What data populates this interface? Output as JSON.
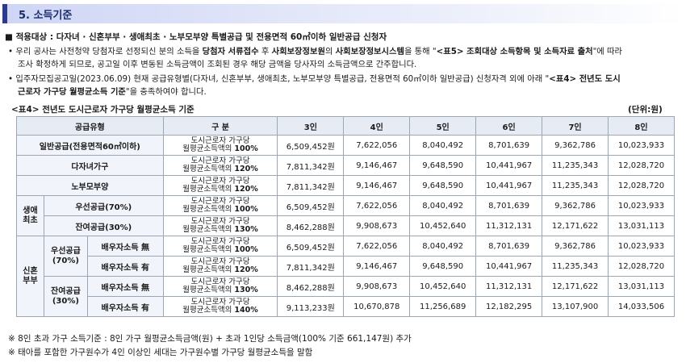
{
  "section_title": "5. 소득기준",
  "apply_line": {
    "prefix": "■ 적용대상 : ",
    "text": "다자녀 · 신혼부부 · 생애최초 · 노부모부양 특별공급 및 전용면적 60㎡이하 일반공급 신청자"
  },
  "para1": {
    "line1a": "• 우리 공사는 사전청약 당첨자로 선정되신 분의 소득을 ",
    "line1b": "당첨자 서류접수",
    "line1c": " 후 ",
    "line1d": "사회보장정보원",
    "line1e": "의 ",
    "line1f": "사회보장정보시스템",
    "line1g": "을 통해 \"",
    "line1h": "<표5> 조회대상 소득항목 및 소득자료 출처",
    "line1i": "\"에 따라",
    "line2": "조사 확정하게 되므로, 공고일 이후 변동된 소득금액이 조회된 경우 해당 금액을 당사자의 소득금액으로 간주합니다."
  },
  "para2": {
    "line1a": "• 입주자모집공고일(2023.06.09) 현재 공급유형별(다자녀, 신혼부부, 생애최초, 노부모부양 특별공급, 전용면적 60㎡이하 일반공급) 신청자격 외에 아래 \"",
    "line1b": "<표4> 전년도 도시",
    "line2a": "근로자 가구당 월평균소득 기준",
    "line2b": "\"을 충족하여야 합니다."
  },
  "table_title": "<표4> 전년도 도시근로자 가구당 월평균소득 기준",
  "unit": "(단위:원)",
  "headers": {
    "type": "공급유형",
    "category": "구    분",
    "cols": [
      "3인",
      "4인",
      "5인",
      "6인",
      "7인",
      "8인"
    ]
  },
  "std_prefix": "도시근로자 가구당",
  "std_mid": "월평균소득액의 ",
  "groups": {
    "first_life": "생애\n최초",
    "newlywed": "신혼\n부부",
    "priority": "우선공급\n(70%)",
    "remaining": "잔여공급\n(30%)"
  },
  "rows": [
    {
      "label": "일반공급(전용면적60㎡이하)",
      "pct": "100%",
      "values": [
        "6,509,452원",
        "7,622,056",
        "8,040,492",
        "8,701,639",
        "9,362,786",
        "10,023,933"
      ]
    },
    {
      "label": "다자녀가구",
      "pct": "120%",
      "values": [
        "7,811,342원",
        "9,146,467",
        "9,648,590",
        "10,441,967",
        "11,235,343",
        "12,028,720"
      ]
    },
    {
      "label": "노부모부양",
      "pct": "120%",
      "values": [
        "7,811,342원",
        "9,146,467",
        "9,648,590",
        "10,441,967",
        "11,235,343",
        "12,028,720"
      ]
    },
    {
      "label": "우선공급(70%)",
      "pct": "100%",
      "values": [
        "6,509,452원",
        "7,622,056",
        "8,040,492",
        "8,701,639",
        "9,362,786",
        "10,023,933"
      ]
    },
    {
      "label": "잔여공급(30%)",
      "pct": "130%",
      "values": [
        "8,462,288원",
        "9,908,673",
        "10,452,640",
        "11,312,131",
        "12,171,622",
        "13,031,113"
      ]
    },
    {
      "label": "배우자소득 無",
      "pct": "100%",
      "values": [
        "6,509,452원",
        "7,622,056",
        "8,040,492",
        "8,701,639",
        "9,362,786",
        "10,023,933"
      ]
    },
    {
      "label": "배우자소득 有",
      "pct": "120%",
      "values": [
        "7,811,342원",
        "9,146,467",
        "9,648,590",
        "10,441,967",
        "11,235,343",
        "12,028,720"
      ]
    },
    {
      "label": "배우자소득 無",
      "pct": "130%",
      "values": [
        "8,462,288원",
        "9,908,673",
        "10,452,640",
        "11,312,131",
        "12,171,622",
        "13,031,113"
      ]
    },
    {
      "label": "배우자소득 有",
      "pct": "140%",
      "values": [
        "9,113,233원",
        "10,670,878",
        "11,256,689",
        "12,182,295",
        "13,107,900",
        "14,033,506"
      ]
    }
  ],
  "notes": [
    "※ 8인 초과 가구 소득기준 : 8인 가구 월평균소득금액(원) + 초과 1인당 소득금액(100% 기준 661,147원) 추가",
    "※ 태아를 포함한 가구원수가 4인 이상인 세대는 가구원수별 가구당 월평균소득을 말함"
  ]
}
